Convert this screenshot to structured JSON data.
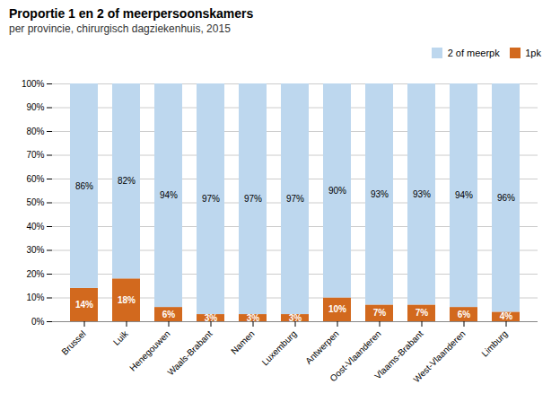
{
  "chart_data": {
    "type": "bar",
    "title": "Proportie 1 en 2 of meerpersoonskamers",
    "subtitle": "per provincie, chirurgisch dagziekenhuis, 2015",
    "categories": [
      "Brussel",
      "Luik",
      "Henegouwen",
      "Waals-Brabant",
      "Namen",
      "Luxemburg",
      "Antwerpen",
      "Oost-Vlaanderen",
      "Vlaams-Brabant",
      "West-Vlaanderen",
      "Limburg"
    ],
    "series": [
      {
        "name": "1pk",
        "color": "#d2691e",
        "values": [
          14,
          18,
          6,
          3,
          3,
          3,
          10,
          7,
          7,
          6,
          4
        ],
        "value_labels": [
          "14%",
          "18%",
          "6%",
          "3%",
          "3%",
          "3%",
          "10%",
          "7%",
          "7%",
          "6%",
          "4%"
        ]
      },
      {
        "name": "2 of meerpk",
        "color": "#bdd7ee",
        "values": [
          86,
          82,
          94,
          97,
          97,
          97,
          90,
          93,
          93,
          94,
          96
        ],
        "value_labels": [
          "86%",
          "82%",
          "94%",
          "97%",
          "97%",
          "97%",
          "90%",
          "93%",
          "93%",
          "94%",
          "96%"
        ]
      }
    ],
    "stacked": true,
    "data_labels": true,
    "ylim": [
      0,
      100
    ],
    "yticks": [
      {
        "value": 0,
        "label": "0%"
      },
      {
        "value": 10,
        "label": "10%"
      },
      {
        "value": 20,
        "label": "20%"
      },
      {
        "value": 30,
        "label": "30%"
      },
      {
        "value": 40,
        "label": "40%"
      },
      {
        "value": 50,
        "label": "50%"
      },
      {
        "value": 60,
        "label": "60%"
      },
      {
        "value": 70,
        "label": "70%"
      },
      {
        "value": 80,
        "label": "80%"
      },
      {
        "value": 90,
        "label": "90%"
      },
      {
        "value": 100,
        "label": "100%"
      }
    ],
    "grid": true,
    "legend": "right"
  }
}
